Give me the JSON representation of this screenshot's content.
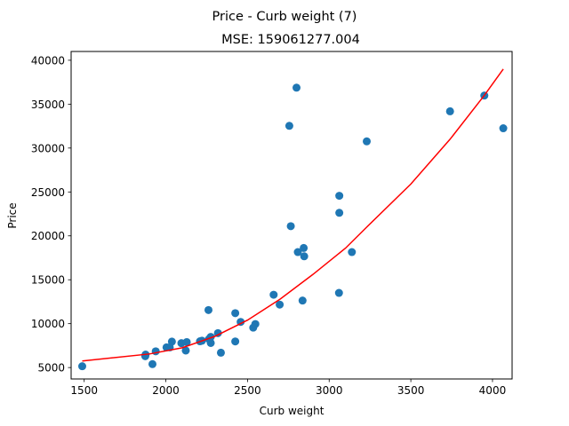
{
  "chart_data": {
    "type": "scatter",
    "title": "Price - Curb weight (7)",
    "subtitle": "MSE: 159061277.004",
    "xlabel": "Curb weight",
    "ylabel": "Price",
    "xlim": [
      1420,
      4120
    ],
    "ylim": [
      3700,
      41000
    ],
    "x_ticks": [
      1500,
      2000,
      2500,
      3000,
      3500,
      4000
    ],
    "x_tick_labels": [
      "1500",
      "2000",
      "2500",
      "3000",
      "3500",
      "4000"
    ],
    "y_ticks": [
      5000,
      10000,
      15000,
      20000,
      25000,
      30000,
      35000,
      40000
    ],
    "y_tick_labels": [
      "5000",
      "10000",
      "15000",
      "20000",
      "25000",
      "30000",
      "35000",
      "40000"
    ],
    "grid": false,
    "colors": {
      "points": "#1f77b4",
      "fit": "#ff0000"
    },
    "series": [
      {
        "type": "scatter",
        "points": [
          [
            1488,
            5151
          ],
          [
            1874,
            6295
          ],
          [
            1876,
            6479
          ],
          [
            1918,
            5389
          ],
          [
            1938,
            6849
          ],
          [
            2004,
            7295
          ],
          [
            2024,
            7299
          ],
          [
            2037,
            7957
          ],
          [
            2095,
            7775
          ],
          [
            2122,
            6938
          ],
          [
            2128,
            7898
          ],
          [
            2209,
            7995
          ],
          [
            2221,
            8058
          ],
          [
            2261,
            11549
          ],
          [
            2264,
            8249
          ],
          [
            2275,
            7799
          ],
          [
            2275,
            8495
          ],
          [
            2319,
            8921
          ],
          [
            2337,
            6692
          ],
          [
            2425,
            11199
          ],
          [
            2425,
            7975
          ],
          [
            2458,
            10198
          ],
          [
            2535,
            9549
          ],
          [
            2548,
            9960
          ],
          [
            2660,
            13295
          ],
          [
            2697,
            12170
          ],
          [
            2756,
            32528
          ],
          [
            2765,
            21105
          ],
          [
            2800,
            36880
          ],
          [
            2808,
            18150
          ],
          [
            2837,
            12629
          ],
          [
            2844,
            18620
          ],
          [
            2847,
            17669
          ],
          [
            3060,
            13499
          ],
          [
            3062,
            24565
          ],
          [
            3062,
            22625
          ],
          [
            3139,
            18150
          ],
          [
            3230,
            30760
          ],
          [
            3740,
            34184
          ],
          [
            3950,
            35980
          ],
          [
            4066,
            32250
          ]
        ]
      },
      {
        "type": "line",
        "points": [
          [
            1488,
            5750
          ],
          [
            1900,
            6550
          ],
          [
            2100,
            7250
          ],
          [
            2300,
            8550
          ],
          [
            2500,
            10400
          ],
          [
            2700,
            12800
          ],
          [
            2900,
            15600
          ],
          [
            3100,
            18600
          ],
          [
            3230,
            21000
          ],
          [
            3500,
            25900
          ],
          [
            3740,
            31000
          ],
          [
            3950,
            36000
          ],
          [
            4066,
            39000
          ]
        ]
      }
    ]
  }
}
